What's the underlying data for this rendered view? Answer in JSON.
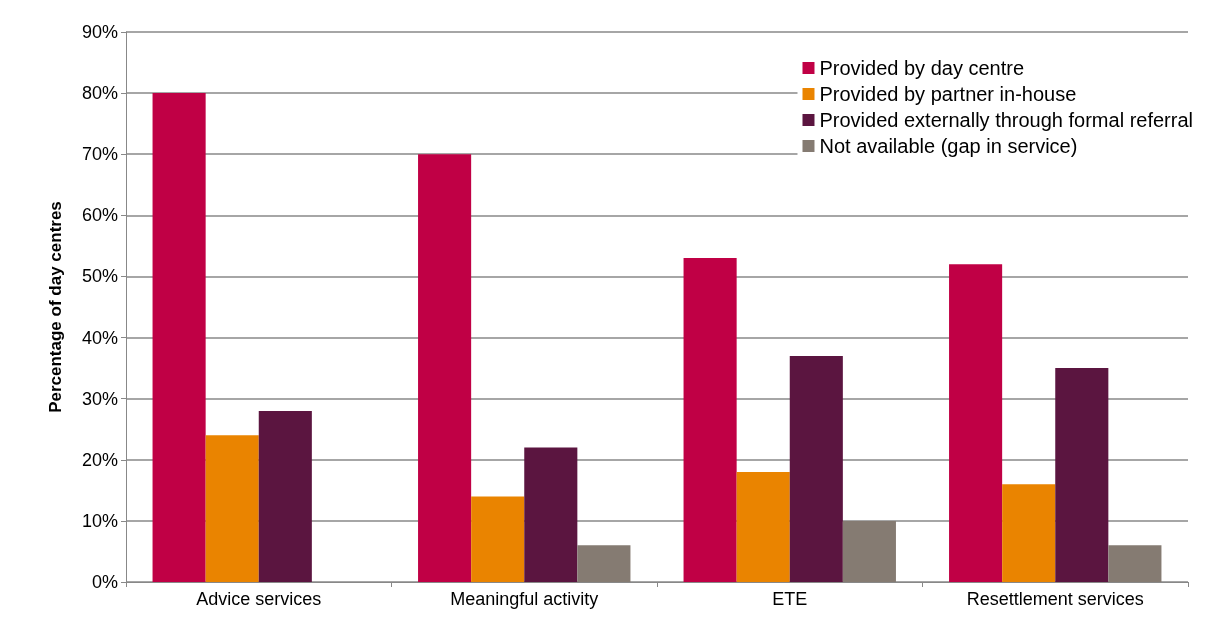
{
  "chart_data": {
    "type": "bar",
    "ylabel": "Percentage of day centres",
    "categories": [
      "Advice services",
      "Meaningful activity",
      "ETE",
      "Resettlement services"
    ],
    "series": [
      {
        "name": "Provided by day centre",
        "color": "#c00045",
        "values": [
          80,
          70,
          53,
          52
        ]
      },
      {
        "name": "Provided by partner in-house",
        "color": "#ea8400",
        "values": [
          24,
          14,
          18,
          16
        ]
      },
      {
        "name": "Provided externally through formal referral",
        "color": "#5b1540",
        "values": [
          28,
          22,
          37,
          35
        ]
      },
      {
        "name": "Not available (gap in service)",
        "color": "#857b72",
        "values": [
          null,
          6,
          10,
          6
        ]
      }
    ],
    "ylim": [
      0,
      90
    ],
    "yticks": [
      {
        "value": 0,
        "label": "0%"
      },
      {
        "value": 10,
        "label": "10%"
      },
      {
        "value": 20,
        "label": "20%"
      },
      {
        "value": 30,
        "label": "30%"
      },
      {
        "value": 40,
        "label": "40%"
      },
      {
        "value": 50,
        "label": "50%"
      },
      {
        "value": 60,
        "label": "60%"
      },
      {
        "value": 70,
        "label": "70%"
      },
      {
        "value": 80,
        "label": "80%"
      },
      {
        "value": 90,
        "label": "90%"
      }
    ],
    "grid": "y",
    "legend": "top right"
  }
}
